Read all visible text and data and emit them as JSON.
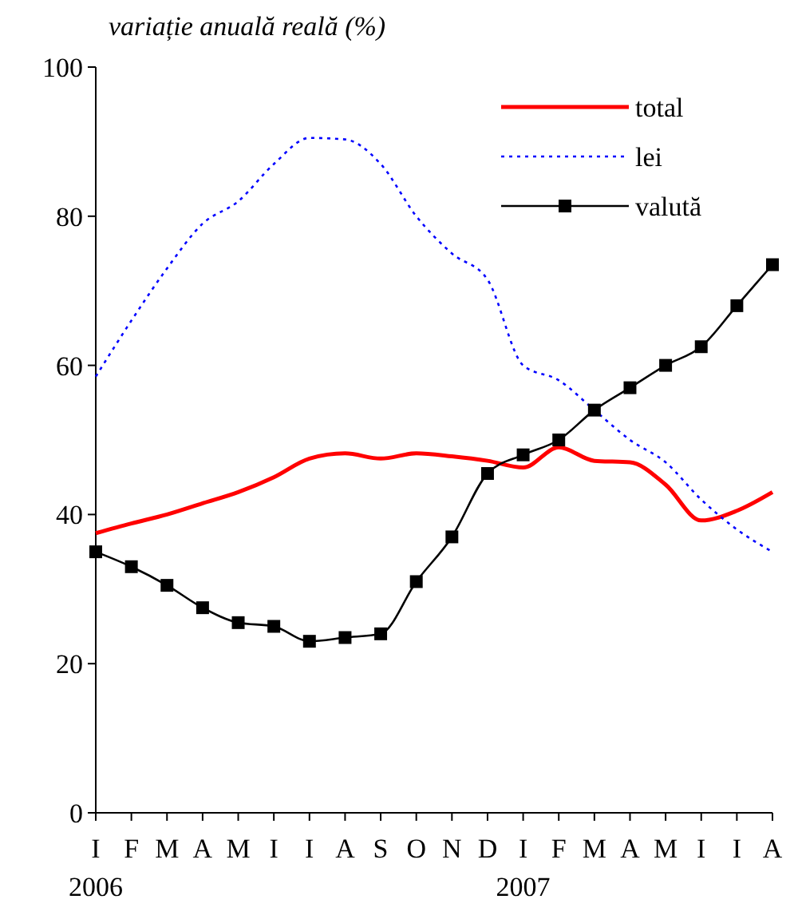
{
  "chart_data": {
    "type": "line",
    "ylabel": "variație anuală reală (%)",
    "categories": [
      "I\n2006",
      "F",
      "M",
      "A",
      "M",
      "I",
      "I",
      "A",
      "S",
      "O",
      "N",
      "D",
      "I\n2007",
      "F",
      "M",
      "A",
      "M",
      "I",
      "I",
      "A"
    ],
    "ylim": [
      0,
      100
    ],
    "yticks": [
      0,
      20,
      40,
      60,
      80,
      100
    ],
    "grid": false,
    "legend": "top right",
    "series": [
      {
        "name": "total",
        "color": "#ff0000",
        "line_style": "solid",
        "marker": "none",
        "values": [
          37.5,
          38.8,
          40,
          41.5,
          43,
          45,
          47.5,
          48.2,
          47.5,
          48.2,
          47.8,
          47.2,
          46.3,
          49,
          47.2,
          47,
          44,
          39.2,
          40.5,
          43
        ]
      },
      {
        "name": "lei",
        "color": "#0000ff",
        "line_style": "dotted",
        "marker": "none",
        "values": [
          58.5,
          66,
          73,
          79,
          82,
          87,
          90.5,
          90.3,
          87,
          80,
          75,
          71.5,
          60,
          58,
          54,
          50,
          47,
          42,
          38,
          35
        ]
      },
      {
        "name": "valută",
        "color": "#000000",
        "line_style": "solid",
        "marker": "square",
        "values": [
          35,
          33,
          30.5,
          27.5,
          25.5,
          25,
          23,
          23.5,
          24,
          31,
          37,
          45.5,
          48,
          50,
          54,
          57,
          60,
          62.5,
          68,
          73.5
        ]
      }
    ]
  }
}
